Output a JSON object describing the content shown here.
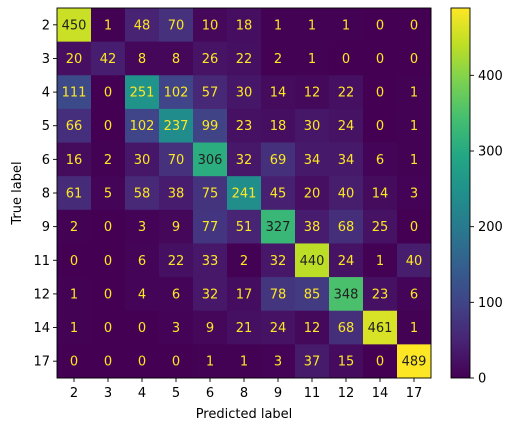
{
  "chart_data": {
    "type": "heatmap",
    "title": "",
    "xlabel": "Predicted label",
    "ylabel": "True label",
    "x_categories": [
      "2",
      "3",
      "4",
      "5",
      "6",
      "8",
      "9",
      "11",
      "12",
      "14",
      "17"
    ],
    "y_categories": [
      "2",
      "3",
      "4",
      "5",
      "6",
      "8",
      "9",
      "11",
      "12",
      "14",
      "17"
    ],
    "values": [
      [
        450,
        1,
        48,
        70,
        10,
        18,
        1,
        1,
        1,
        0,
        0
      ],
      [
        20,
        42,
        8,
        8,
        26,
        22,
        2,
        1,
        0,
        0,
        0
      ],
      [
        111,
        0,
        251,
        102,
        57,
        30,
        14,
        12,
        22,
        0,
        1
      ],
      [
        66,
        0,
        102,
        237,
        99,
        23,
        18,
        30,
        24,
        0,
        1
      ],
      [
        16,
        2,
        30,
        70,
        306,
        32,
        69,
        34,
        34,
        6,
        1
      ],
      [
        61,
        5,
        58,
        38,
        75,
        241,
        45,
        20,
        40,
        14,
        3
      ],
      [
        2,
        0,
        3,
        9,
        77,
        51,
        327,
        38,
        68,
        25,
        0
      ],
      [
        0,
        0,
        6,
        22,
        33,
        2,
        32,
        440,
        24,
        1,
        40
      ],
      [
        1,
        0,
        4,
        6,
        32,
        17,
        78,
        85,
        348,
        23,
        6
      ],
      [
        1,
        0,
        0,
        3,
        9,
        21,
        24,
        12,
        68,
        461,
        1
      ],
      [
        0,
        0,
        0,
        0,
        1,
        1,
        3,
        37,
        15,
        0,
        489
      ]
    ],
    "colormap": "viridis",
    "color_range": [
      0,
      489
    ],
    "colorbar_ticks": [
      0,
      100,
      200,
      300,
      400
    ]
  }
}
